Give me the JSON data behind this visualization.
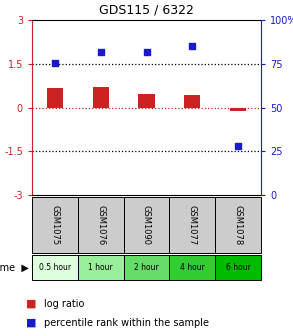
{
  "title": "GDS115 / 6322",
  "samples": [
    "GSM1075",
    "GSM1076",
    "GSM1090",
    "GSM1077",
    "GSM1078"
  ],
  "time_labels": [
    "0.5 hour",
    "1 hour",
    "2 hour",
    "4 hour",
    "6 hour"
  ],
  "log_ratios": [
    0.68,
    0.72,
    0.48,
    0.42,
    -0.12
  ],
  "percentiles": [
    75.5,
    82.0,
    82.0,
    85.0,
    28.0
  ],
  "ylim_left": [
    -3,
    3
  ],
  "ylim_right": [
    0,
    100
  ],
  "bar_color": "#cc2222",
  "dot_color": "#1a1acc",
  "time_colors": [
    "#ddffdd",
    "#99ee99",
    "#66dd66",
    "#33cc33",
    "#00bb00"
  ],
  "gsm_bg": "#cccccc",
  "legend_red": "#cc2222",
  "legend_blue": "#1a1acc",
  "title_fontsize": 9,
  "tick_fontsize": 7,
  "bar_width": 0.35
}
